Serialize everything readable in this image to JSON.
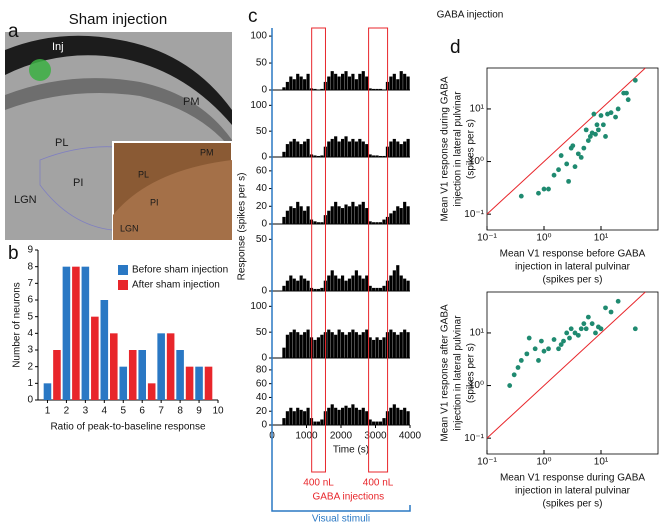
{
  "figure": {
    "panel_letters": [
      "a",
      "b",
      "c",
      "d"
    ],
    "panel_a": {
      "title": "Sham injection",
      "labels": [
        "Inj",
        "PM",
        "PL",
        "PI",
        "LGN"
      ],
      "inset_labels": [
        "PM",
        "PL",
        "PI",
        "LGN"
      ]
    }
  },
  "chart_data": [
    {
      "type": "bar",
      "x": [
        1,
        2,
        3,
        4,
        5,
        6,
        7,
        8,
        9
      ],
      "series": [
        {
          "name": "Before sham injection",
          "color": "#2a78c4",
          "values": [
            1,
            8,
            8,
            6,
            2,
            3,
            4,
            3,
            2
          ]
        },
        {
          "name": "After sham injection",
          "color": "#e8262b",
          "values": [
            3,
            8,
            5,
            4,
            3,
            1,
            4,
            2,
            2
          ]
        }
      ],
      "xlim": [
        0.5,
        10
      ],
      "xticks": [
        1,
        2,
        3,
        4,
        5,
        6,
        7,
        8,
        9,
        10
      ],
      "ylim": [
        0,
        9
      ],
      "yticks": [
        0,
        1,
        2,
        3,
        4,
        5,
        6,
        7,
        8,
        9
      ],
      "xlabel": "Ratio of peak-to-baseline response",
      "ylabel": "Number of neurons",
      "legend": "upper right"
    },
    {
      "type": "histogram",
      "title": "GABA injection",
      "color": "#000000",
      "bins": [
        0,
        100,
        200,
        300,
        400,
        500,
        600,
        700,
        800,
        900,
        1000,
        1100,
        1200,
        1300,
        1400,
        1500,
        1600,
        1700,
        1800,
        1900,
        2000,
        2100,
        2200,
        2300,
        2400,
        2500,
        2600,
        2700,
        2800,
        2900,
        3000,
        3100,
        3200,
        3300,
        3400,
        3500,
        3600,
        3700,
        3800,
        3900,
        4000
      ],
      "panels": [
        {
          "values": [
            0,
            0,
            0,
            5,
            15,
            25,
            20,
            30,
            25,
            20,
            30,
            3,
            2,
            1,
            2,
            15,
            25,
            35,
            30,
            25,
            30,
            35,
            25,
            30,
            20,
            30,
            35,
            25,
            3,
            2,
            2,
            2,
            1,
            15,
            25,
            30,
            20,
            35,
            30,
            25
          ],
          "ylim": [
            0,
            115
          ],
          "yticks": [
            0,
            50,
            100
          ]
        },
        {
          "values": [
            0,
            0,
            0,
            10,
            25,
            30,
            35,
            30,
            25,
            30,
            35,
            5,
            3,
            2,
            3,
            20,
            30,
            35,
            40,
            30,
            35,
            40,
            30,
            35,
            30,
            35,
            30,
            25,
            5,
            3,
            3,
            2,
            2,
            20,
            30,
            35,
            30,
            25,
            30,
            35
          ],
          "ylim": [
            0,
            120
          ],
          "yticks": [
            0,
            50,
            100
          ]
        },
        {
          "values": [
            0,
            0,
            0,
            8,
            15,
            20,
            18,
            25,
            20,
            15,
            20,
            5,
            3,
            2,
            2,
            10,
            15,
            20,
            25,
            20,
            18,
            22,
            20,
            25,
            20,
            22,
            25,
            18,
            3,
            2,
            2,
            2,
            5,
            8,
            12,
            15,
            20,
            18,
            25,
            20
          ],
          "ylim": [
            0,
            70
          ],
          "yticks": [
            0,
            20,
            40,
            60
          ]
        },
        {
          "values": [
            0,
            0,
            0,
            5,
            10,
            15,
            12,
            10,
            15,
            12,
            10,
            3,
            2,
            2,
            3,
            10,
            15,
            20,
            15,
            12,
            15,
            10,
            12,
            15,
            20,
            15,
            12,
            15,
            5,
            3,
            3,
            3,
            5,
            10,
            15,
            20,
            25,
            15,
            12,
            10
          ],
          "ylim": [
            0,
            60
          ],
          "yticks": [
            0,
            50
          ]
        },
        {
          "values": [
            0,
            0,
            0,
            20,
            45,
            50,
            55,
            50,
            45,
            50,
            55,
            40,
            35,
            40,
            45,
            50,
            55,
            50,
            45,
            55,
            50,
            45,
            50,
            55,
            50,
            45,
            50,
            55,
            40,
            35,
            40,
            35,
            40,
            50,
            55,
            50,
            45,
            50,
            55,
            50
          ],
          "ylim": [
            0,
            120
          ],
          "yticks": [
            0,
            50,
            100
          ]
        },
        {
          "values": [
            0,
            0,
            0,
            10,
            20,
            25,
            20,
            25,
            22,
            20,
            25,
            10,
            5,
            5,
            8,
            20,
            25,
            30,
            25,
            22,
            25,
            28,
            25,
            30,
            25,
            22,
            25,
            20,
            8,
            5,
            5,
            5,
            10,
            20,
            25,
            30,
            25,
            22,
            25,
            20
          ],
          "ylim": [
            0,
            90
          ],
          "yticks": [
            0,
            20,
            40,
            60,
            80
          ]
        }
      ],
      "xlim": [
        0,
        4000
      ],
      "xticks": [
        0,
        1000,
        2000,
        3000,
        4000
      ],
      "xlabel": "Time (s)",
      "ylabel": "Response (spikes per s)",
      "injection_windows": [
        [
          1150,
          1550
        ],
        [
          2800,
          3350
        ]
      ],
      "injection_labels": [
        "400 nL",
        "400 nL"
      ],
      "injection_caption": "GABA injections",
      "injection_color": "#e8262b",
      "stimulus_caption": "Visual stimuli",
      "stimulus_color": "#2a78c4"
    },
    {
      "type": "scatter",
      "color": "#1f8a70",
      "log": true,
      "identity_line": "#e8262b",
      "x": [
        0.4,
        0.8,
        1.0,
        1.2,
        1.5,
        1.8,
        2,
        2.5,
        2.7,
        3,
        3.2,
        3.5,
        4,
        4.5,
        5,
        5.5,
        6,
        6.5,
        7,
        7.5,
        8,
        8.5,
        9,
        10,
        11,
        12,
        13,
        15,
        18,
        20,
        25,
        28,
        30,
        40
      ],
      "values": [
        0.22,
        0.25,
        0.3,
        0.3,
        0.55,
        0.7,
        1.3,
        0.9,
        0.42,
        1.8,
        2,
        0.8,
        1.4,
        1.2,
        1.8,
        4,
        2.5,
        3,
        3.5,
        8,
        3.3,
        5,
        4,
        7.5,
        5,
        3,
        8,
        8.5,
        7,
        10,
        20,
        20,
        15,
        35
      ],
      "xlim": [
        0.1,
        100
      ],
      "ylim": [
        0.05,
        60
      ],
      "xticks": [
        {
          "value": 0.1,
          "label": "10⁻¹"
        },
        {
          "value": 1,
          "label": "10⁰"
        },
        {
          "value": 10,
          "label": "10¹"
        }
      ],
      "yticks": [
        {
          "value": 0.1,
          "label": "10⁻¹"
        },
        {
          "value": 1,
          "label": "10⁰"
        },
        {
          "value": 10,
          "label": "10¹"
        }
      ],
      "xlabel": [
        "Mean V1 response before GABA",
        "injection in lateral pulvinar",
        "(spikes per s)"
      ],
      "ylabel": [
        "Mean V1 response during GABA",
        "injection in lateral pulvinar",
        "(spikes per s)"
      ]
    },
    {
      "type": "scatter",
      "color": "#1f8a70",
      "log": true,
      "identity_line": "#e8262b",
      "x": [
        0.25,
        0.3,
        0.35,
        0.4,
        0.5,
        0.55,
        0.7,
        0.8,
        0.9,
        1,
        1.2,
        1.5,
        1.8,
        2,
        2.2,
        2.5,
        2.8,
        3,
        3.5,
        4,
        4.5,
        5,
        5.5,
        6,
        7,
        8,
        9,
        10,
        12,
        15,
        20,
        40
      ],
      "values": [
        1,
        1.6,
        2.2,
        3,
        4,
        8,
        5,
        3,
        7,
        4.5,
        5,
        7.5,
        5,
        6,
        7,
        10,
        8,
        12,
        10,
        9,
        12,
        15,
        12,
        20,
        15,
        10,
        13,
        12,
        30,
        25,
        40,
        12
      ],
      "xlim": [
        0.1,
        100
      ],
      "ylim": [
        0.05,
        60
      ],
      "xticks": [
        {
          "value": 0.1,
          "label": "10⁻¹"
        },
        {
          "value": 1,
          "label": "10⁰"
        },
        {
          "value": 10,
          "label": "10¹"
        }
      ],
      "yticks": [
        {
          "value": 0.1,
          "label": "10⁻¹"
        },
        {
          "value": 1,
          "label": "10⁰"
        },
        {
          "value": 10,
          "label": "10¹"
        }
      ],
      "xlabel": [
        "Mean V1 response during GABA",
        "injection in lateral pulvinar",
        "(spikes per s)"
      ],
      "ylabel": [
        "Mean V1 response after GABA",
        "injection in lateral pulvinar",
        "(spikes per s)"
      ]
    }
  ]
}
